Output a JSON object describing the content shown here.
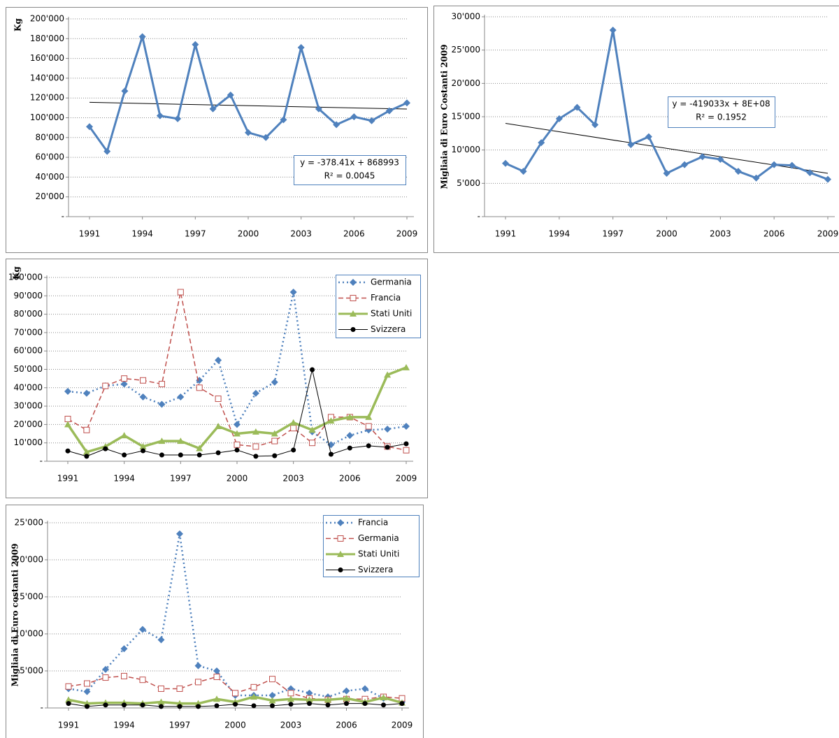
{
  "chart_data": [
    {
      "type": "line",
      "y_label": "Kg",
      "x": [
        1991,
        1992,
        1993,
        1994,
        1995,
        1996,
        1997,
        1998,
        1999,
        2000,
        2001,
        2002,
        2003,
        2004,
        2005,
        2006,
        2007,
        2008,
        2009
      ],
      "xlim": [
        1991,
        2009
      ],
      "xticks": [
        1991,
        1994,
        1997,
        2000,
        2003,
        2006,
        2009
      ],
      "ylim": [
        0,
        200000
      ],
      "yticks": [
        {
          "value": 0,
          "label": "-"
        },
        {
          "value": 20000,
          "label": "20'000"
        },
        {
          "value": 40000,
          "label": "40'000"
        },
        {
          "value": 60000,
          "label": "60'000"
        },
        {
          "value": 80000,
          "label": "80'000"
        },
        {
          "value": 100000,
          "label": "100'000"
        },
        {
          "value": 120000,
          "label": "120'000"
        },
        {
          "value": 140000,
          "label": "140'000"
        },
        {
          "value": 160000,
          "label": "160'000"
        },
        {
          "value": 180000,
          "label": "180'000"
        },
        {
          "value": 200000,
          "label": "200'000"
        }
      ],
      "grid": true,
      "series": [
        {
          "color": "#4f81bd",
          "marker": "diamond",
          "dash": "solid",
          "width": 3,
          "values": [
            91000,
            66000,
            127000,
            182000,
            102000,
            99000,
            174000,
            109000,
            123000,
            85000,
            80000,
            98000,
            171000,
            109000,
            93000,
            101000,
            97000,
            107000,
            115000
          ]
        }
      ],
      "trendline": {
        "x": [
          1991,
          2009
        ],
        "values": [
          115600,
          108800
        ],
        "color": "#000000",
        "annotation": [
          "y = -378.41x + 868993",
          "R² = 0.0045"
        ]
      }
    },
    {
      "type": "line",
      "y_label": "Migliaia di Euro Costanti 2009",
      "x": [
        1991,
        1992,
        1993,
        1994,
        1995,
        1996,
        1997,
        1998,
        1999,
        2000,
        2001,
        2002,
        2003,
        2004,
        2005,
        2006,
        2007,
        2008,
        2009
      ],
      "xlim": [
        1991,
        2009
      ],
      "xticks": [
        1991,
        1994,
        1997,
        2000,
        2003,
        2006,
        2009
      ],
      "ylim": [
        0,
        30000
      ],
      "yticks": [
        {
          "value": 0,
          "label": "-"
        },
        {
          "value": 5000,
          "label": "5'000"
        },
        {
          "value": 10000,
          "label": "10'000"
        },
        {
          "value": 15000,
          "label": "15'000"
        },
        {
          "value": 20000,
          "label": "20'000"
        },
        {
          "value": 25000,
          "label": "25'000"
        },
        {
          "value": 30000,
          "label": "30'000"
        }
      ],
      "grid": true,
      "series": [
        {
          "color": "#4f81bd",
          "marker": "diamond",
          "dash": "solid",
          "width": 3,
          "values": [
            8000,
            6800,
            11100,
            14700,
            16400,
            13800,
            28000,
            10800,
            12000,
            6500,
            7800,
            9000,
            8600,
            6800,
            5800,
            7800,
            7700,
            6600,
            5600
          ]
        }
      ],
      "trendline": {
        "x": [
          1991,
          2009
        ],
        "values": [
          14000,
          6500
        ],
        "color": "#000000",
        "annotation": [
          "y = -419033x + 8E+08",
          "R² = 0.1952"
        ]
      }
    },
    {
      "type": "line",
      "y_label": "Kg",
      "x": [
        1991,
        1992,
        1993,
        1994,
        1995,
        1996,
        1997,
        1998,
        1999,
        2000,
        2001,
        2002,
        2003,
        2004,
        2005,
        2006,
        2007,
        2008,
        2009
      ],
      "xlim": [
        1991,
        2009
      ],
      "xticks": [
        1991,
        1994,
        1997,
        2000,
        2003,
        2006,
        2009
      ],
      "ylim": [
        0,
        100000
      ],
      "yticks": [
        {
          "value": 0,
          "label": "-"
        },
        {
          "value": 10000,
          "label": "10'000"
        },
        {
          "value": 20000,
          "label": "20'000"
        },
        {
          "value": 30000,
          "label": "30'000"
        },
        {
          "value": 40000,
          "label": "40'000"
        },
        {
          "value": 50000,
          "label": "50'000"
        },
        {
          "value": 60000,
          "label": "60'000"
        },
        {
          "value": 70000,
          "label": "70'000"
        },
        {
          "value": 80000,
          "label": "80'000"
        },
        {
          "value": 90000,
          "label": "90'000"
        },
        {
          "value": 100000,
          "label": "100'000"
        }
      ],
      "grid": true,
      "legend": "upper right",
      "series": [
        {
          "name": "Germania",
          "color": "#4f81bd",
          "marker": "diamond",
          "dash": "dotted",
          "width": 2.5,
          "values": [
            38000,
            37000,
            41000,
            42000,
            35000,
            31000,
            35000,
            44000,
            55000,
            20000,
            37000,
            43000,
            92000,
            16000,
            9000,
            14000,
            17000,
            17500,
            19000
          ]
        },
        {
          "name": "Francia",
          "color": "#c0504d",
          "marker": "square-open",
          "dash": "dashed",
          "width": 1.5,
          "values": [
            23000,
            17000,
            41000,
            45000,
            44000,
            42000,
            92000,
            40000,
            34000,
            9000,
            8000,
            11000,
            18000,
            10000,
            24000,
            24000,
            19000,
            8000,
            6000
          ]
        },
        {
          "name": "Stati Uniti",
          "color": "#9bbb59",
          "marker": "triangle",
          "dash": "solid",
          "width": 3.5,
          "values": [
            20000,
            5000,
            8000,
            14000,
            8000,
            11000,
            11000,
            7000,
            19000,
            15000,
            16000,
            15000,
            21000,
            17000,
            22000,
            24000,
            24000,
            47000,
            51000
          ]
        },
        {
          "name": "Svizzera",
          "color": "#000000",
          "marker": "circle",
          "dash": "solid",
          "width": 1,
          "values": [
            5600,
            2700,
            6800,
            3400,
            5700,
            3400,
            3400,
            3400,
            4600,
            6100,
            2700,
            3000,
            6100,
            49800,
            3800,
            7200,
            8400,
            7600,
            9500
          ]
        }
      ]
    },
    {
      "type": "line",
      "y_label": "Migliaia  di Euro costanti 2009",
      "x": [
        1991,
        1992,
        1993,
        1994,
        1995,
        1996,
        1997,
        1998,
        1999,
        2000,
        2001,
        2002,
        2003,
        2004,
        2005,
        2006,
        2007,
        2008,
        2009
      ],
      "xlim": [
        1991,
        2009
      ],
      "xticks": [
        1991,
        1994,
        1997,
        2000,
        2003,
        2006,
        2009
      ],
      "ylim": [
        0,
        25000
      ],
      "yticks": [
        {
          "value": 0,
          "label": "-"
        },
        {
          "value": 5000,
          "label": "5'000"
        },
        {
          "value": 10000,
          "label": "10'000"
        },
        {
          "value": 15000,
          "label": "15'000"
        },
        {
          "value": 20000,
          "label": "20'000"
        },
        {
          "value": 25000,
          "label": "25'000"
        }
      ],
      "grid": true,
      "legend": "upper right",
      "series": [
        {
          "name": "Francia",
          "color": "#4f81bd",
          "marker": "diamond",
          "dash": "dotted",
          "width": 2.5,
          "values": [
            2600,
            2200,
            5200,
            8000,
            10600,
            9200,
            23500,
            5700,
            5000,
            1700,
            1700,
            1700,
            2600,
            2000,
            1500,
            2300,
            2600,
            1300,
            800
          ]
        },
        {
          "name": "Germania",
          "color": "#c0504d",
          "marker": "square-open",
          "dash": "dashed",
          "width": 1.5,
          "values": [
            2900,
            3300,
            4100,
            4300,
            3800,
            2600,
            2600,
            3500,
            4200,
            2000,
            2800,
            3900,
            2000,
            1300,
            1100,
            1200,
            1200,
            1500,
            1300
          ]
        },
        {
          "name": "Stati Uniti",
          "color": "#9bbb59",
          "marker": "triangle",
          "dash": "solid",
          "width": 3.5,
          "values": [
            1100,
            600,
            700,
            700,
            600,
            800,
            600,
            600,
            1200,
            800,
            1500,
            1000,
            1200,
            1100,
            1100,
            1300,
            800,
            1400,
            700
          ]
        },
        {
          "name": "Svizzera",
          "color": "#000000",
          "marker": "circle",
          "dash": "solid",
          "width": 1,
          "values": [
            600,
            200,
            400,
            400,
            400,
            200,
            200,
            200,
            300,
            500,
            300,
            300,
            500,
            600,
            400,
            600,
            600,
            400,
            600
          ]
        }
      ]
    }
  ]
}
